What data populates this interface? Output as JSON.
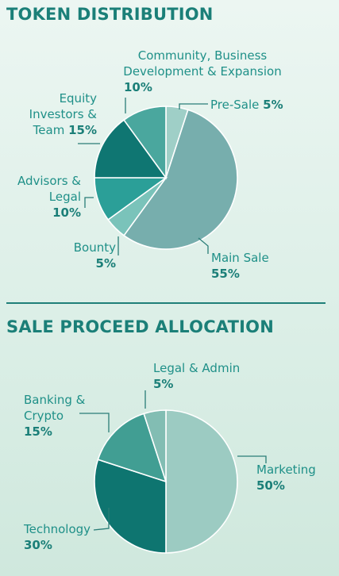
{
  "chart_data": [
    {
      "type": "pie",
      "title": "TOKEN DISTRIBUTION",
      "slices": [
        {
          "label": "Pre-Sale",
          "value": 5,
          "display": "5%",
          "color": "#9fcfc7"
        },
        {
          "label": "Main Sale",
          "value": 55,
          "display": "55%",
          "color": "#77aead"
        },
        {
          "label": "Bounty",
          "value": 5,
          "display": "5%",
          "color": "#7ac3ba"
        },
        {
          "label": "Advisors & Legal",
          "value": 10,
          "display": "10%",
          "color": "#2b9f98"
        },
        {
          "label": "Equity Investors & Team",
          "value": 15,
          "display": "15%",
          "color": "#0f7672"
        },
        {
          "label": "Community, Business Development & Expansion",
          "value": 10,
          "display": "10%",
          "color": "#4aa79e"
        }
      ]
    },
    {
      "type": "pie",
      "title": "SALE PROCEED ALLOCATION",
      "slices": [
        {
          "label": "Marketing",
          "value": 50,
          "display": "50%",
          "color": "#9ccbc2"
        },
        {
          "label": "Technology",
          "value": 30,
          "display": "30%",
          "color": "#0e7570"
        },
        {
          "label": "Banking & Crypto",
          "value": 15,
          "display": "15%",
          "color": "#419e93"
        },
        {
          "label": "Legal & Admin",
          "value": 5,
          "display": "5%",
          "color": "#82bdb3"
        }
      ]
    }
  ],
  "labels": {
    "pre_sale": {
      "line1": "Pre-Sale",
      "pct": "5%"
    },
    "main_sale": {
      "line1": "Main Sale",
      "pct": "55%"
    },
    "bounty": {
      "line1": "Bounty",
      "pct": "5%"
    },
    "advisors": {
      "line1": "Advisors &",
      "line2": "Legal",
      "pct": "10%"
    },
    "equity": {
      "line1": "Equity",
      "line2": "Investors &",
      "line3": "Team",
      "pct": "15%"
    },
    "community": {
      "line1": "Community, Business",
      "line2": "Development & Expansion",
      "pct": "10%"
    },
    "marketing": {
      "line1": "Marketing",
      "pct": "50%"
    },
    "technology": {
      "line1": "Technology",
      "pct": "30%"
    },
    "banking": {
      "line1": "Banking &",
      "line2": "Crypto",
      "pct": "15%"
    },
    "legal_admin": {
      "line1": "Legal & Admin",
      "pct": "5%"
    }
  }
}
